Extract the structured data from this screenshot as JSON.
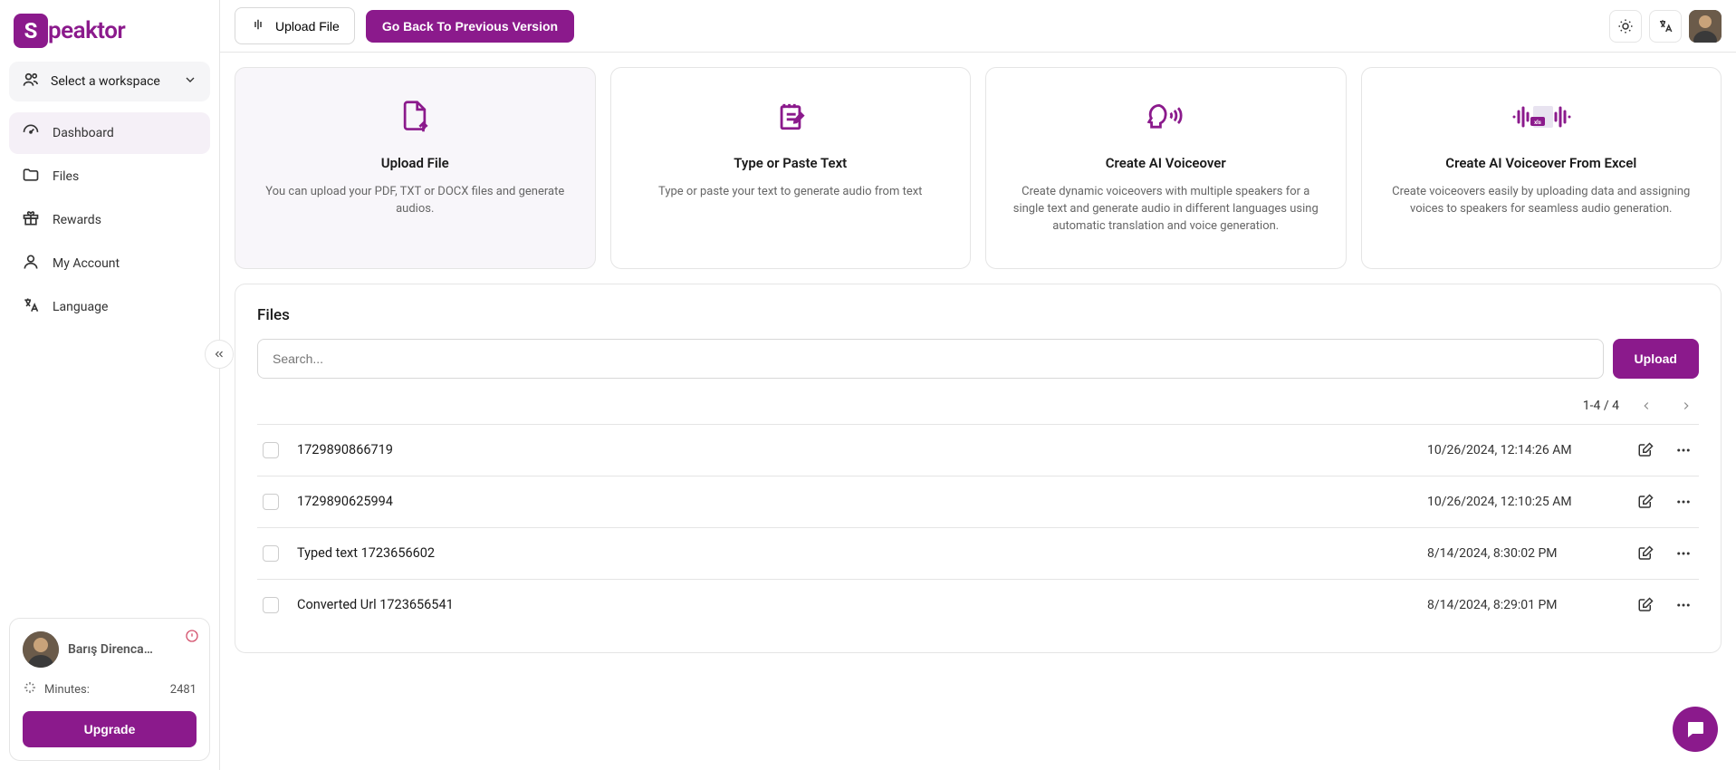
{
  "brand": {
    "name": "peaktor",
    "initial": "S",
    "accent": "#8b1a8c"
  },
  "sidebar": {
    "workspace_label": "Select a workspace",
    "nav": [
      {
        "label": "Dashboard",
        "icon": "gauge"
      },
      {
        "label": "Files",
        "icon": "folder"
      },
      {
        "label": "Rewards",
        "icon": "gift"
      },
      {
        "label": "My Account",
        "icon": "user"
      },
      {
        "label": "Language",
        "icon": "translate"
      }
    ],
    "user": {
      "name": "Barış Direncan ...",
      "minutes_label": "Minutes:",
      "minutes_value": "2481",
      "upgrade_label": "Upgrade"
    }
  },
  "topbar": {
    "upload_file_label": "Upload File",
    "previous_version_label": "Go Back To Previous Version"
  },
  "cards": [
    {
      "title": "Upload File",
      "desc": "You can upload your PDF, TXT or DOCX files and generate audios."
    },
    {
      "title": "Type or Paste Text",
      "desc": "Type or paste your text to generate audio from text"
    },
    {
      "title": "Create AI Voiceover",
      "desc": "Create dynamic voiceovers with multiple speakers for a single text and generate audio in different languages using automatic translation and voice generation."
    },
    {
      "title": "Create AI Voiceover From Excel",
      "desc": "Create voiceovers easily by uploading data and assigning voices to speakers for seamless audio generation."
    }
  ],
  "files": {
    "heading": "Files",
    "search_placeholder": "Search...",
    "upload_label": "Upload",
    "pagination_text": "1-4 / 4",
    "rows": [
      {
        "name": "1729890866719",
        "date": "10/26/2024, 12:14:26 AM"
      },
      {
        "name": "1729890625994",
        "date": "10/26/2024, 12:10:25 AM"
      },
      {
        "name": "Typed text 1723656602",
        "date": "8/14/2024, 8:30:02 PM"
      },
      {
        "name": "Converted Url 1723656541",
        "date": "8/14/2024, 8:29:01 PM"
      }
    ]
  }
}
